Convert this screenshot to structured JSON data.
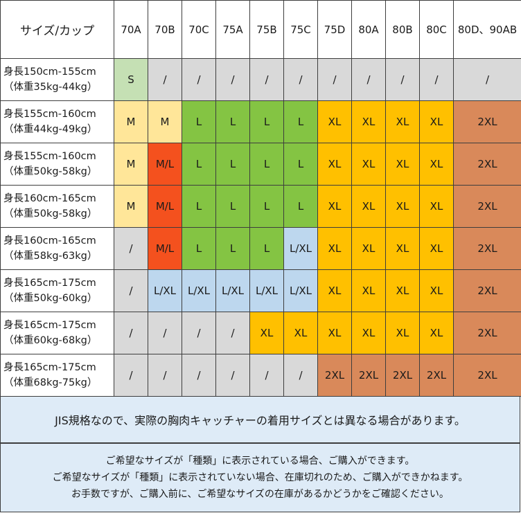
{
  "table": {
    "corner_label": "サイズ/カップ",
    "columns": [
      "70A",
      "70B",
      "70C",
      "75A",
      "75B",
      "75C",
      "75D",
      "80A",
      "80B",
      "80C",
      "80D、90AB"
    ],
    "rows": [
      {
        "height": "身長150cm-155cm",
        "weight": "（体重35kg-44kg）",
        "cells": [
          "S",
          "/",
          "/",
          "/",
          "/",
          "/",
          "/",
          "/",
          "/",
          "/",
          "/"
        ]
      },
      {
        "height": "身長155cm-160cm",
        "weight": "（体重44kg-49kg）",
        "cells": [
          "M",
          "M",
          "L",
          "L",
          "L",
          "L",
          "XL",
          "XL",
          "XL",
          "XL",
          "2XL"
        ]
      },
      {
        "height": "身長155cm-160cm",
        "weight": "（体重50kg-58kg）",
        "cells": [
          "M",
          "M/L",
          "L",
          "L",
          "L",
          "L",
          "XL",
          "XL",
          "XL",
          "XL",
          "2XL"
        ]
      },
      {
        "height": "身長160cm-165cm",
        "weight": "（体重50kg-58kg）",
        "cells": [
          "M",
          "M/L",
          "L",
          "L",
          "L",
          "L",
          "XL",
          "XL",
          "XL",
          "XL",
          "2XL"
        ]
      },
      {
        "height": "身長160cm-165cm",
        "weight": "（体重58kg-63kg）",
        "cells": [
          "/",
          "M/L",
          "L",
          "L",
          "L",
          "L/XL",
          "XL",
          "XL",
          "XL",
          "XL",
          "2XL"
        ]
      },
      {
        "height": "身長165cm-175cm",
        "weight": "（体重50kg-60kg）",
        "cells": [
          "/",
          "L/XL",
          "L/XL",
          "L/XL",
          "L/XL",
          "L/XL",
          "XL",
          "XL",
          "XL",
          "XL",
          "2XL"
        ]
      },
      {
        "height": "身長165cm-175cm",
        "weight": "（体重60kg-68kg）",
        "cells": [
          "/",
          "/",
          "/",
          "/",
          "XL",
          "XL",
          "XL",
          "XL",
          "XL",
          "XL",
          "2XL"
        ]
      },
      {
        "height": "身長165cm-175cm",
        "weight": "（体重68kg-75kg）",
        "cells": [
          "/",
          "/",
          "/",
          "/",
          "/",
          "/",
          "2XL",
          "2XL",
          "2XL",
          "2XL",
          "2XL"
        ]
      }
    ]
  },
  "colors": {
    "S": "#c5e0b4",
    "M": "#ffe699",
    "M/L": "#f4511e",
    "L": "#84c443",
    "L/XL": "#bdd7ee",
    "XL": "#ffc000",
    "2XL": "#d9895a",
    "/": "#d9d9d9",
    "note_background": "#deebf7"
  },
  "notes": {
    "jis": "JIS規格なので、実際の胸肉キャッチャーの着用サイズとは異なる場合があります。",
    "lines": [
      "ご希望なサイズが「種類」に表示されている場合、ご購入ができます。",
      "ご希望なサイズが「種類」に表示されていない場合、在庫切れのため、ご購入ができかねます。",
      "お手数ですが、ご購入前に、ご希望なサイズの在庫があるかどうかをご確認ください。"
    ]
  }
}
